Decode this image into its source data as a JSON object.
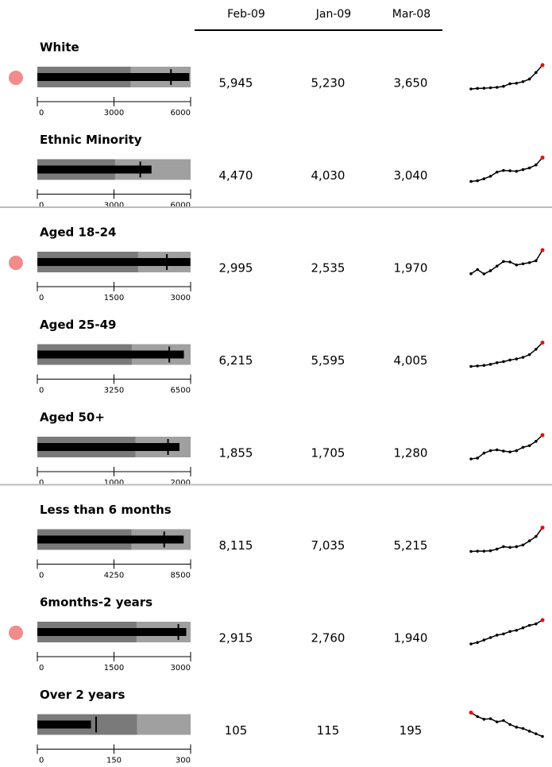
{
  "columns": [
    "Feb-09",
    "Jan-09",
    "Mar-08"
  ],
  "groups": [
    {
      "rows": [
        {
          "label": "White",
          "values": [
            5945,
            5230,
            3650
          ],
          "value_labels": [
            "5,945",
            "5,230",
            "3,650"
          ],
          "xlim": [
            0,
            6000
          ],
          "xticks": [
            0,
            3000,
            6000
          ],
          "alert": true,
          "trend": [
            3650,
            3700,
            3720,
            3760,
            3800,
            3900,
            4150,
            4200,
            4350,
            4600,
            5230,
            5945
          ]
        },
        {
          "label": "Ethnic Minority",
          "values": [
            4470,
            4030,
            3040
          ],
          "value_labels": [
            "4,470",
            "4,030",
            "3,040"
          ],
          "xlim": [
            0,
            6000
          ],
          "xticks": [
            0,
            3000,
            6000
          ],
          "alert": false,
          "trend": [
            3040,
            3080,
            3200,
            3350,
            3600,
            3700,
            3680,
            3650,
            3750,
            3850,
            4030,
            4470
          ]
        }
      ]
    },
    {
      "rows": [
        {
          "label": "Aged 18-24",
          "values": [
            2995,
            2535,
            1970
          ],
          "value_labels": [
            "2,995",
            "2,535",
            "1,970"
          ],
          "xlim": [
            0,
            3000
          ],
          "xticks": [
            0,
            1500,
            3000
          ],
          "alert": true,
          "trend": [
            1970,
            2150,
            1960,
            2100,
            2300,
            2500,
            2480,
            2350,
            2400,
            2450,
            2535,
            2995
          ]
        },
        {
          "label": "Aged 25-49",
          "values": [
            6215,
            5595,
            4005
          ],
          "value_labels": [
            "6,215",
            "5,595",
            "4,005"
          ],
          "xlim": [
            0,
            6500
          ],
          "xticks": [
            0,
            3250,
            6500
          ],
          "alert": false,
          "trend": [
            4005,
            4050,
            4100,
            4200,
            4350,
            4450,
            4600,
            4700,
            4850,
            5100,
            5595,
            6215
          ]
        },
        {
          "label": "Aged 50+",
          "values": [
            1855,
            1705,
            1280
          ],
          "value_labels": [
            "1,855",
            "1,705",
            "1,280"
          ],
          "xlim": [
            0,
            2000
          ],
          "xticks": [
            0,
            1000,
            2000
          ],
          "alert": false,
          "trend": [
            1280,
            1300,
            1420,
            1480,
            1500,
            1470,
            1450,
            1480,
            1560,
            1600,
            1705,
            1855
          ]
        }
      ]
    },
    {
      "rows": [
        {
          "label": "Less than 6 months",
          "values": [
            8115,
            7035,
            5215
          ],
          "value_labels": [
            "8,115",
            "7,035",
            "5,215"
          ],
          "xlim": [
            0,
            8500
          ],
          "xticks": [
            0,
            4250,
            8500
          ],
          "alert": false,
          "trend": [
            5215,
            5250,
            5250,
            5300,
            5500,
            5800,
            5700,
            5800,
            6000,
            6500,
            7035,
            8115
          ]
        },
        {
          "label": "6months-2 years",
          "values": [
            2915,
            2760,
            1940
          ],
          "value_labels": [
            "2,915",
            "2,760",
            "1,940"
          ],
          "xlim": [
            0,
            3000
          ],
          "xticks": [
            0,
            1500,
            3000
          ],
          "alert": true,
          "trend": [
            1940,
            2000,
            2100,
            2200,
            2300,
            2350,
            2450,
            2500,
            2600,
            2700,
            2760,
            2915
          ]
        },
        {
          "label": "Over 2 years",
          "values": [
            105,
            115,
            195
          ],
          "value_labels": [
            "105",
            "115",
            "195"
          ],
          "xlim": [
            0,
            300
          ],
          "xticks": [
            0,
            150,
            300
          ],
          "alert": false,
          "trend": [
            195,
            180,
            170,
            172,
            160,
            165,
            150,
            140,
            135,
            125,
            115,
            105
          ]
        }
      ]
    }
  ]
}
